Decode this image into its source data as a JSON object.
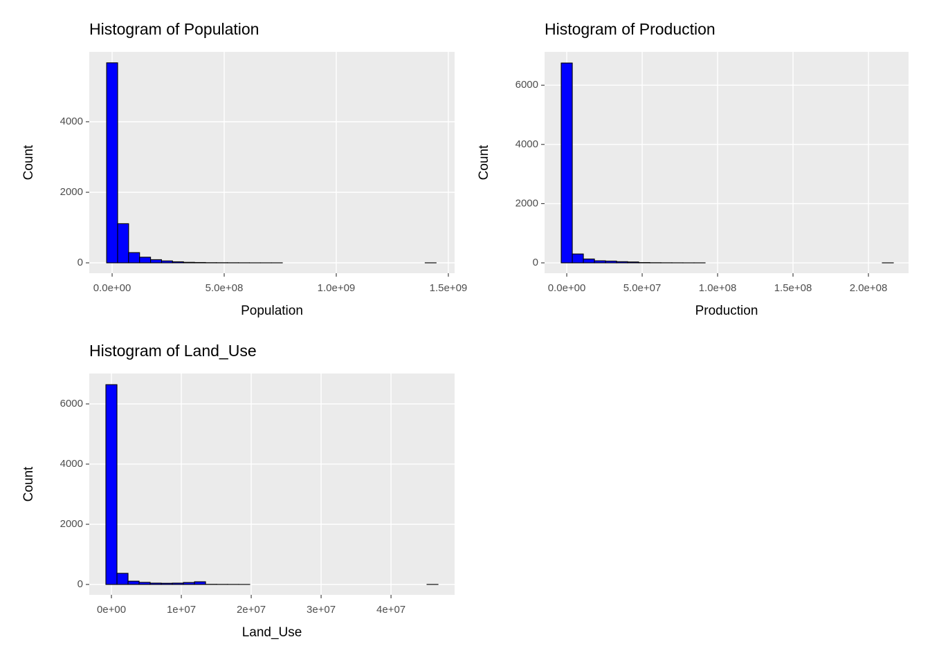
{
  "chart_data": [
    {
      "type": "histogram",
      "title": "Histogram of  Population",
      "xlabel": "Population",
      "ylabel": "Count",
      "color": "#0000ff",
      "edge_color": "#000000",
      "grid": true,
      "bins": [
        -24500000,
        24500000,
        73500000,
        122500000,
        171500000,
        220500000,
        269500000,
        318500000,
        367500000,
        416500000,
        465500000,
        514500000,
        563500000,
        612500000,
        661500000,
        710500000,
        759500000,
        808500000,
        857500000,
        906500000,
        955500000,
        1004500000,
        1053500000,
        1102500000,
        1151500000,
        1200500000,
        1249500000,
        1298500000,
        1347500000,
        1396500000,
        1445500000
      ],
      "values": [
        5670,
        1110,
        290,
        160,
        90,
        55,
        30,
        15,
        10,
        5,
        4,
        3,
        2,
        1,
        1,
        1,
        0,
        0,
        0,
        0,
        0,
        0,
        0,
        0,
        0,
        0,
        0,
        0,
        0,
        1
      ],
      "xlim": [
        -102000000,
        1528000000
      ],
      "xticks": [
        {
          "value": 0,
          "label": "0.0e+00"
        },
        {
          "value": 500000000,
          "label": "5.0e+08"
        },
        {
          "value": 1000000000,
          "label": "1.0e+09"
        },
        {
          "value": 1500000000,
          "label": "1.5e+09"
        }
      ],
      "ylim": [
        -294,
        5980
      ],
      "yticks": [
        0,
        2000,
        4000
      ]
    },
    {
      "type": "histogram",
      "title": "Histogram of  Production",
      "xlabel": "Production",
      "ylabel": "Count",
      "color": "#0000ff",
      "edge_color": "#000000",
      "grid": true,
      "bins": [
        -3670000,
        3670000,
        11010000,
        18350000,
        25690000,
        33030000,
        40370000,
        47710000,
        55050000,
        62390000,
        69730000,
        77070000,
        84410000,
        91750000,
        99090000,
        106430000,
        113770000,
        121110000,
        128450000,
        135790000,
        143130000,
        150470000,
        157810000,
        165150000,
        172490000,
        179830000,
        187170000,
        194510000,
        201850000,
        209190000,
        216530000
      ],
      "values": [
        6750,
        300,
        130,
        70,
        60,
        40,
        30,
        10,
        5,
        3,
        2,
        1,
        1,
        0,
        0,
        0,
        0,
        0,
        0,
        0,
        0,
        0,
        0,
        0,
        0,
        0,
        0,
        0,
        0,
        1
      ],
      "xlim": [
        -14700000,
        226600000
      ],
      "xticks": [
        {
          "value": 0,
          "label": "0.0e+00"
        },
        {
          "value": 50000000,
          "label": "5.0e+07"
        },
        {
          "value": 100000000,
          "label": "1.0e+08"
        },
        {
          "value": 150000000,
          "label": "1.5e+08"
        },
        {
          "value": 200000000,
          "label": "2.0e+08"
        }
      ],
      "ylim": [
        -350,
        7126
      ],
      "yticks": [
        0,
        2000,
        4000,
        6000
      ]
    },
    {
      "type": "histogram",
      "title": "Histogram of  Land_Use",
      "xlabel": "Land_Use",
      "ylabel": "Count",
      "color": "#0000ff",
      "edge_color": "#000000",
      "grid": true,
      "bins": [
        -792000,
        792000,
        2376000,
        3960000,
        5544000,
        7128000,
        8712000,
        10296000,
        11880000,
        13464000,
        15048000,
        16632000,
        18216000,
        19800000,
        21384000,
        22968000,
        24552000,
        26136000,
        27720000,
        29304000,
        30888000,
        32472000,
        34056000,
        35640000,
        37224000,
        38808000,
        40392000,
        41976000,
        43560000,
        45144000,
        46728000
      ],
      "values": [
        6640,
        370,
        110,
        70,
        45,
        40,
        45,
        65,
        90,
        5,
        3,
        2,
        1,
        0,
        0,
        0,
        0,
        0,
        0,
        0,
        0,
        0,
        0,
        0,
        0,
        0,
        0,
        0,
        0,
        1
      ],
      "xlim": [
        -3170000,
        49100000
      ],
      "xticks": [
        {
          "value": 0,
          "label": "0e+00"
        },
        {
          "value": 10000000,
          "label": "1e+07"
        },
        {
          "value": 20000000,
          "label": "2e+07"
        },
        {
          "value": 30000000,
          "label": "3e+07"
        },
        {
          "value": 40000000,
          "label": "4e+07"
        }
      ],
      "ylim": [
        -345,
        7011
      ],
      "yticks": [
        0,
        2000,
        4000,
        6000
      ]
    }
  ]
}
